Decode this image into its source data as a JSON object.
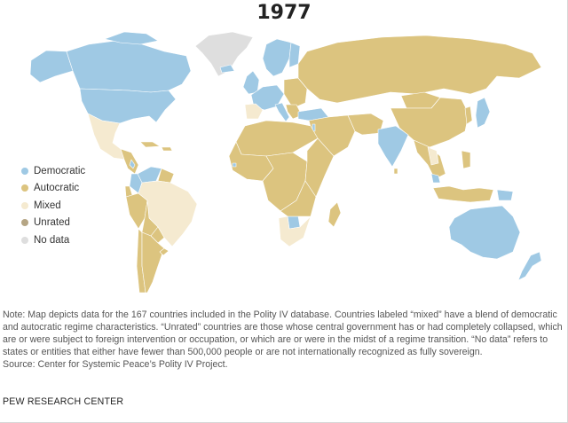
{
  "title": "1977",
  "colors": {
    "democratic": "#9fc9e4",
    "autocratic": "#dcc47f",
    "mixed": "#f5ead0",
    "unrated": "#b5a584",
    "no_data": "#dedede",
    "border": "#ffffff"
  },
  "legend": [
    {
      "label": "Democratic",
      "color": "#9fc9e4"
    },
    {
      "label": "Autocratic",
      "color": "#dcc47f"
    },
    {
      "label": "Mixed",
      "color": "#f5ead0"
    },
    {
      "label": "Unrated",
      "color": "#b5a584"
    },
    {
      "label": "No data",
      "color": "#dedede"
    }
  ],
  "note": "Note: Map depicts data for the 167 countries included in the Polity IV database. Countries labeled “mixed” have a blend of democratic and autocratic regime characteristics. “Unrated” countries are those whose central government has or had completely collapsed, which are or were subject to foreign intervention or occupation, or which are or were in the midst of a regime transition. “No data” refers to states or entities that either have fewer than 500,000 people or are not internationally recognized as fully sovereign.",
  "source": "Source: Center for Systemic Peace’s Polity IV Project.",
  "credit": "PEW RESEARCH CENTER"
}
